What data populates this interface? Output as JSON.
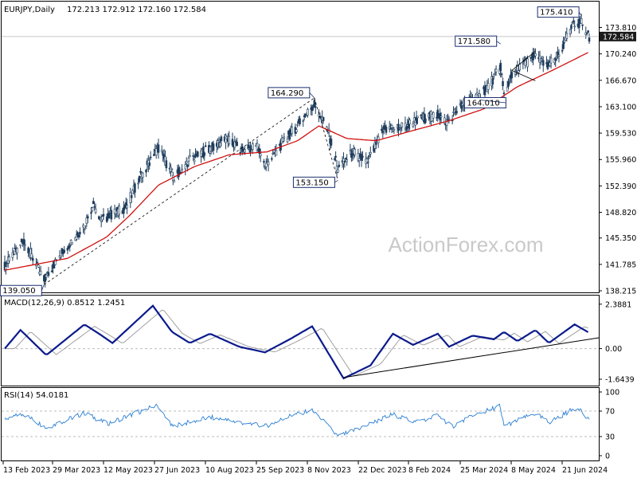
{
  "header": {
    "symbol": "EURJPY,Daily",
    "ohlc": "172.213 172.912 172.160 172.584"
  },
  "watermark": "ActionForex.com",
  "colors": {
    "candle": "#1f3d5c",
    "ma": "#d01010",
    "macd": "#0a1a8c",
    "signal": "#a0a0a0",
    "rsi": "#2b7fd4",
    "annotation_border": "#1a2e6e",
    "price_tag_bg": "#1b1b1b",
    "trend": "#000000"
  },
  "chart_data": [
    {
      "type": "candlestick",
      "title": "EURJPY,Daily",
      "y_ticks": [
        "173.810",
        "170.240",
        "166.670",
        "163.100",
        "159.530",
        "155.960",
        "152.390",
        "148.820",
        "145.350",
        "141.785",
        "138.215"
      ],
      "ylim": [
        138.215,
        175.8
      ],
      "current_price": "172.584",
      "x_labels": [
        "13 Feb 2023",
        "29 Mar 2023",
        "12 May 2023",
        "27 Jun 2023",
        "10 Aug 2023",
        "25 Sep 2023",
        "8 Nov 2023",
        "22 Dec 2023",
        "8 Feb 2024",
        "25 Mar 2024",
        "8 May 2024",
        "21 Jun 2024"
      ],
      "annotations": [
        {
          "label": "139.050",
          "x_date": "2023-03-20",
          "value": 139.05
        },
        {
          "label": "164.290",
          "x_date": "2023-11-16",
          "value": 164.29
        },
        {
          "label": "153.150",
          "x_date": "2023-12-07",
          "value": 153.15
        },
        {
          "label": "171.580",
          "x_date": "2024-04-30",
          "value": 171.58
        },
        {
          "label": "164.010",
          "x_date": "2024-04-12",
          "value": 164.01
        },
        {
          "label": "175.410",
          "x_date": "2024-07-11",
          "value": 175.41
        }
      ],
      "anchors": [
        {
          "date": "2023-02-13",
          "close": 141.5
        },
        {
          "date": "2023-03-02",
          "close": 145.0
        },
        {
          "date": "2023-03-20",
          "close": 139.6
        },
        {
          "date": "2023-04-05",
          "close": 143.5
        },
        {
          "date": "2023-04-25",
          "close": 147.0
        },
        {
          "date": "2023-05-03",
          "close": 150.0
        },
        {
          "date": "2023-05-10",
          "close": 147.8
        },
        {
          "date": "2023-06-01",
          "close": 149.5
        },
        {
          "date": "2023-06-15",
          "close": 154.0
        },
        {
          "date": "2023-06-30",
          "close": 157.5
        },
        {
          "date": "2023-07-14",
          "close": 153.5
        },
        {
          "date": "2023-07-28",
          "close": 156.0
        },
        {
          "date": "2023-08-15",
          "close": 157.5
        },
        {
          "date": "2023-08-30",
          "close": 158.8
        },
        {
          "date": "2023-09-12",
          "close": 157.2
        },
        {
          "date": "2023-09-26",
          "close": 157.8
        },
        {
          "date": "2023-10-03",
          "close": 155.0
        },
        {
          "date": "2023-10-20",
          "close": 158.5
        },
        {
          "date": "2023-11-01",
          "close": 160.5
        },
        {
          "date": "2023-11-16",
          "close": 163.5
        },
        {
          "date": "2023-11-28",
          "close": 160.0
        },
        {
          "date": "2023-12-07",
          "close": 154.5
        },
        {
          "date": "2023-12-20",
          "close": 157.0
        },
        {
          "date": "2024-01-02",
          "close": 155.5
        },
        {
          "date": "2024-01-17",
          "close": 160.0
        },
        {
          "date": "2024-02-05",
          "close": 160.5
        },
        {
          "date": "2024-02-20",
          "close": 161.5
        },
        {
          "date": "2024-03-05",
          "close": 162.0
        },
        {
          "date": "2024-03-13",
          "close": 161.0
        },
        {
          "date": "2024-03-28",
          "close": 163.5
        },
        {
          "date": "2024-04-12",
          "close": 164.5
        },
        {
          "date": "2024-04-24",
          "close": 167.0
        },
        {
          "date": "2024-04-30",
          "close": 168.5
        },
        {
          "date": "2024-05-03",
          "close": 164.5
        },
        {
          "date": "2024-05-10",
          "close": 167.5
        },
        {
          "date": "2024-05-31",
          "close": 170.0
        },
        {
          "date": "2024-06-10",
          "close": 168.5
        },
        {
          "date": "2024-06-21",
          "close": 170.0
        },
        {
          "date": "2024-07-03",
          "close": 174.0
        },
        {
          "date": "2024-07-11",
          "close": 174.5
        },
        {
          "date": "2024-07-18",
          "close": 172.58
        }
      ],
      "ma_anchors": [
        {
          "date": "2023-02-13",
          "value": 141.0
        },
        {
          "date": "2023-03-20",
          "value": 142.0
        },
        {
          "date": "2023-04-10",
          "value": 142.6
        },
        {
          "date": "2023-05-15",
          "value": 145.5
        },
        {
          "date": "2023-06-05",
          "value": 148.5
        },
        {
          "date": "2023-06-30",
          "value": 152.5
        },
        {
          "date": "2023-08-01",
          "value": 155.0
        },
        {
          "date": "2023-09-01",
          "value": 156.6
        },
        {
          "date": "2023-10-05",
          "value": 157.0
        },
        {
          "date": "2023-11-01",
          "value": 158.5
        },
        {
          "date": "2023-11-20",
          "value": 160.5
        },
        {
          "date": "2023-12-15",
          "value": 158.8
        },
        {
          "date": "2024-01-10",
          "value": 158.5
        },
        {
          "date": "2024-02-10",
          "value": 159.8
        },
        {
          "date": "2024-03-15",
          "value": 161.2
        },
        {
          "date": "2024-04-15",
          "value": 162.8
        },
        {
          "date": "2024-05-15",
          "value": 165.8
        },
        {
          "date": "2024-06-15",
          "value": 168.0
        },
        {
          "date": "2024-07-18",
          "value": 170.5
        }
      ]
    },
    {
      "type": "line",
      "title": "MACD(12,26,9) 0.8512 1.2451",
      "y_ticks": [
        "2.3881",
        "0.00",
        "-1.6439"
      ],
      "ylim": [
        -1.9,
        2.55
      ],
      "anchors": [
        {
          "date": "2023-02-13",
          "value": 0.0
        },
        {
          "date": "2023-02-27",
          "value": 1.0
        },
        {
          "date": "2023-03-22",
          "value": -0.35
        },
        {
          "date": "2023-04-25",
          "value": 1.3
        },
        {
          "date": "2023-05-08",
          "value": 0.8
        },
        {
          "date": "2023-05-20",
          "value": 0.3
        },
        {
          "date": "2023-06-25",
          "value": 2.3
        },
        {
          "date": "2023-07-12",
          "value": 0.9
        },
        {
          "date": "2023-07-28",
          "value": 0.3
        },
        {
          "date": "2023-08-15",
          "value": 0.8
        },
        {
          "date": "2023-09-10",
          "value": 0.1
        },
        {
          "date": "2023-10-03",
          "value": -0.2
        },
        {
          "date": "2023-10-25",
          "value": 0.5
        },
        {
          "date": "2023-11-14",
          "value": 1.2
        },
        {
          "date": "2023-12-06",
          "value": -1.0
        },
        {
          "date": "2023-12-12",
          "value": -1.6
        },
        {
          "date": "2024-01-05",
          "value": -0.9
        },
        {
          "date": "2024-01-25",
          "value": 0.8
        },
        {
          "date": "2024-02-12",
          "value": 0.2
        },
        {
          "date": "2024-03-05",
          "value": 0.8
        },
        {
          "date": "2024-03-15",
          "value": 0.1
        },
        {
          "date": "2024-04-05",
          "value": 0.7
        },
        {
          "date": "2024-04-24",
          "value": 0.5
        },
        {
          "date": "2024-05-03",
          "value": 0.9
        },
        {
          "date": "2024-05-15",
          "value": 0.4
        },
        {
          "date": "2024-05-31",
          "value": 1.0
        },
        {
          "date": "2024-06-12",
          "value": 0.3
        },
        {
          "date": "2024-07-05",
          "value": 1.3
        },
        {
          "date": "2024-07-18",
          "value": 0.85
        }
      ],
      "trendline": [
        {
          "date": "2023-12-12",
          "value": -1.55
        },
        {
          "date": "2024-07-18",
          "value": 0.5
        }
      ]
    },
    {
      "type": "line",
      "title": "RSI(14) 54.0181",
      "y_ticks": [
        "100",
        "70",
        "30",
        "0"
      ],
      "ylim": [
        0,
        100
      ],
      "anchors": [
        {
          "date": "2023-02-13",
          "value": 58
        },
        {
          "date": "2023-03-02",
          "value": 65
        },
        {
          "date": "2023-03-22",
          "value": 44
        },
        {
          "date": "2023-04-25",
          "value": 67
        },
        {
          "date": "2023-05-15",
          "value": 50
        },
        {
          "date": "2023-06-28",
          "value": 79
        },
        {
          "date": "2023-07-12",
          "value": 46
        },
        {
          "date": "2023-08-15",
          "value": 60
        },
        {
          "date": "2023-09-12",
          "value": 52
        },
        {
          "date": "2023-10-03",
          "value": 46
        },
        {
          "date": "2023-10-25",
          "value": 62
        },
        {
          "date": "2023-11-14",
          "value": 72
        },
        {
          "date": "2023-12-07",
          "value": 30
        },
        {
          "date": "2024-01-05",
          "value": 50
        },
        {
          "date": "2024-01-25",
          "value": 65
        },
        {
          "date": "2024-02-14",
          "value": 53
        },
        {
          "date": "2024-03-05",
          "value": 63
        },
        {
          "date": "2024-03-18",
          "value": 46
        },
        {
          "date": "2024-04-05",
          "value": 62
        },
        {
          "date": "2024-04-29",
          "value": 78
        },
        {
          "date": "2024-05-03",
          "value": 47
        },
        {
          "date": "2024-05-31",
          "value": 66
        },
        {
          "date": "2024-06-12",
          "value": 52
        },
        {
          "date": "2024-07-08",
          "value": 77
        },
        {
          "date": "2024-07-18",
          "value": 54
        }
      ]
    }
  ]
}
